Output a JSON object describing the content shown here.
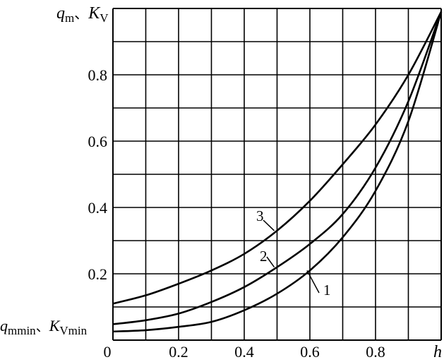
{
  "chart_data": {
    "type": "line",
    "title": "",
    "xlabel": "h",
    "ylabel_main": "q",
    "ylabel_main_sub": "m",
    "ylabel_sep": "、",
    "ylabel_second": "K",
    "ylabel_second_sub": "V",
    "ymin_label_main": "q",
    "ymin_label_main_sub": "m",
    "ymin_label_main_sub2": "min",
    "ymin_label_sep": "、",
    "ymin_label_second": "K",
    "ymin_label_second_sub": "Vmin",
    "xlim": [
      0,
      1.0
    ],
    "ylim": [
      0,
      1.0
    ],
    "x_tick_labels": [
      "0",
      "0.2",
      "0.4",
      "0.6",
      "0.8"
    ],
    "x_tick_values": [
      0,
      0.2,
      0.4,
      0.6,
      0.8
    ],
    "y_tick_labels": [
      "0.2",
      "0.4",
      "0.6",
      "0.8"
    ],
    "y_tick_values": [
      0.2,
      0.4,
      0.6,
      0.8
    ],
    "grid": true,
    "grid_step_x": 0.1,
    "grid_step_y": 0.1,
    "x": [
      0,
      0.1,
      0.2,
      0.3,
      0.4,
      0.5,
      0.6,
      0.7,
      0.8,
      0.9,
      1.0
    ],
    "series": [
      {
        "name": "1",
        "values": [
          0.026,
          0.03,
          0.04,
          0.055,
          0.09,
          0.14,
          0.21,
          0.31,
          0.45,
          0.66,
          0.99
        ]
      },
      {
        "name": "2",
        "values": [
          0.048,
          0.06,
          0.08,
          0.115,
          0.16,
          0.22,
          0.29,
          0.38,
          0.52,
          0.72,
          0.99
        ]
      },
      {
        "name": "3",
        "values": [
          0.11,
          0.135,
          0.17,
          0.21,
          0.26,
          0.33,
          0.42,
          0.53,
          0.65,
          0.8,
          0.99
        ]
      }
    ]
  }
}
